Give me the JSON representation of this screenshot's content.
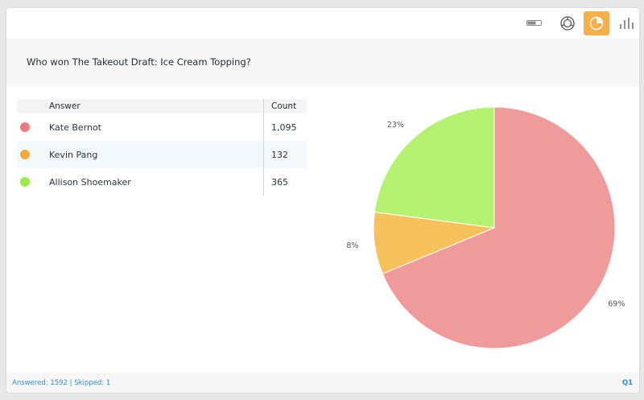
{
  "toolbar": {
    "tools": [
      {
        "name": "toggle-icon",
        "active": false
      },
      {
        "name": "donut-icon",
        "active": false
      },
      {
        "name": "pie-chart-icon",
        "active": true
      },
      {
        "name": "bar-chart-icon",
        "active": false
      }
    ],
    "accent_color": "#f5b04b"
  },
  "question": "Who won The Takeout Draft: Ice Cream Topping?",
  "table": {
    "headers": {
      "answer": "Answer",
      "count": "Count"
    },
    "rows": [
      {
        "answer": "Kate Bernot",
        "count": "1,095",
        "color": "#ef7b7b"
      },
      {
        "answer": "Kevin Pang",
        "count": "132",
        "color": "#f5a93a"
      },
      {
        "answer": "Allison Shoemaker",
        "count": "365",
        "color": "#9ceb4a"
      }
    ]
  },
  "chart_data": {
    "type": "pie",
    "categories": [
      "Kate Bernot",
      "Kevin Pang",
      "Allison Shoemaker"
    ],
    "values": [
      1095,
      132,
      365
    ],
    "labels": [
      "69%",
      "8%",
      "23%"
    ],
    "colors": [
      "#f09b9b",
      "#f7c25c",
      "#b6f272"
    ],
    "title": ""
  },
  "footer": {
    "answered_label": "Answered:",
    "answered_value": "1592",
    "separator": "|",
    "skipped_label": "Skipped:",
    "skipped_value": "1",
    "question_number": "Q1"
  }
}
